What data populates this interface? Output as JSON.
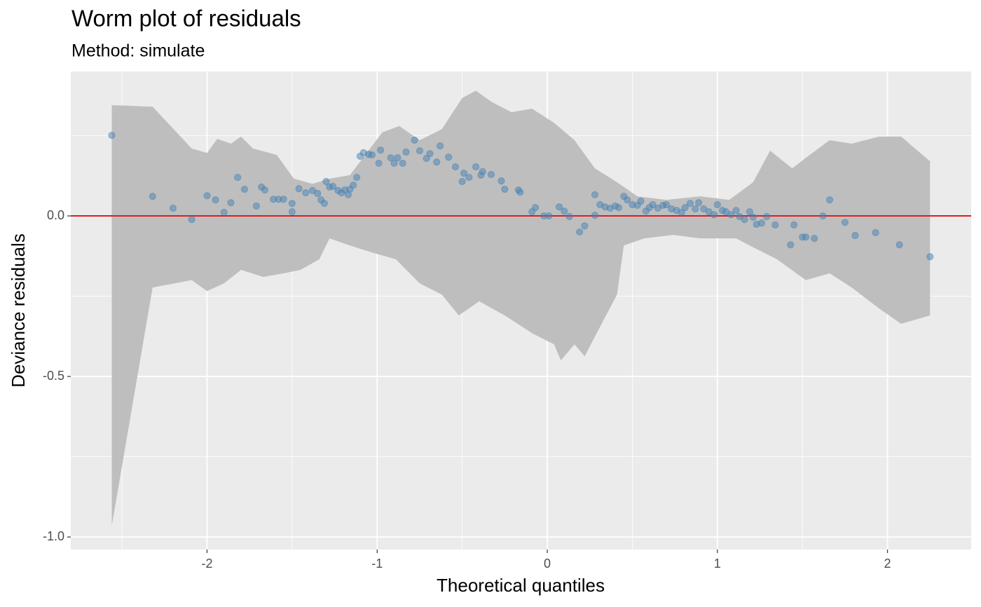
{
  "chart_data": {
    "type": "scatter",
    "title": "Worm plot of residuals",
    "subtitle": "Method: simulate",
    "x_label": "Theoretical quantiles",
    "y_label": "Deviance residuals",
    "xlim": [
      -2.801,
      2.492
    ],
    "ylim": [
      -1.039,
      0.4498
    ],
    "xticks": [
      -2,
      -1,
      0,
      1,
      2
    ],
    "yticks": [
      {
        "value": 0,
        "label": "0.0"
      },
      {
        "value": -0.5,
        "label": "-0.5"
      },
      {
        "value": -1,
        "label": "-1.0"
      }
    ],
    "grid": true,
    "points": {
      "color": "#4682b4",
      "x": [
        -2.56,
        -2.32,
        -2.2,
        -2.09,
        -2.0,
        -1.95,
        -1.9,
        -1.86,
        -1.82,
        -1.78,
        -1.71,
        -1.68,
        -1.66,
        -1.61,
        -1.58,
        -1.55,
        -1.5,
        -1.5,
        -1.46,
        -1.42,
        -1.38,
        -1.35,
        -1.33,
        -1.31,
        -1.3,
        -1.28,
        -1.26,
        -1.23,
        -1.21,
        -1.19,
        -1.17,
        -1.16,
        -1.14,
        -1.12,
        -1.1,
        -1.08,
        -1.05,
        -1.03,
        -0.99,
        -0.98,
        -0.92,
        -0.9,
        -0.88,
        -0.85,
        -0.83,
        -0.78,
        -0.75,
        -0.71,
        -0.69,
        -0.65,
        -0.63,
        -0.58,
        -0.54,
        -0.5,
        -0.49,
        -0.46,
        -0.42,
        -0.39,
        -0.38,
        -0.33,
        -0.27,
        -0.25,
        -0.17,
        -0.16,
        -0.09,
        -0.07,
        -0.02,
        0.01,
        0.07,
        0.1,
        0.13,
        0.19,
        0.22,
        0.28,
        0.28,
        0.31,
        0.34,
        0.37,
        0.4,
        0.42,
        0.45,
        0.47,
        0.5,
        0.53,
        0.55,
        0.58,
        0.6,
        0.62,
        0.65,
        0.68,
        0.7,
        0.73,
        0.76,
        0.79,
        0.81,
        0.84,
        0.87,
        0.89,
        0.92,
        0.95,
        0.98,
        1.0,
        1.03,
        1.05,
        1.08,
        1.11,
        1.13,
        1.16,
        1.19,
        1.21,
        1.23,
        1.26,
        1.29,
        1.34,
        1.43,
        1.45,
        1.5,
        1.52,
        1.57,
        1.62,
        1.66,
        1.75,
        1.81,
        1.93,
        2.07,
        2.25
      ],
      "y": [
        0.251,
        0.061,
        0.024,
        -0.011,
        0.063,
        0.05,
        0.011,
        0.041,
        0.12,
        0.083,
        0.031,
        0.09,
        0.081,
        0.052,
        0.052,
        0.052,
        0.039,
        0.013,
        0.085,
        0.072,
        0.079,
        0.07,
        0.05,
        0.039,
        0.107,
        0.09,
        0.092,
        0.079,
        0.072,
        0.081,
        0.066,
        0.083,
        0.096,
        0.12,
        0.186,
        0.197,
        0.192,
        0.19,
        0.164,
        0.205,
        0.181,
        0.164,
        0.181,
        0.164,
        0.199,
        0.236,
        0.203,
        0.179,
        0.194,
        0.168,
        0.218,
        0.183,
        0.153,
        0.107,
        0.133,
        0.12,
        0.153,
        0.127,
        0.138,
        0.129,
        0.109,
        0.083,
        0.081,
        0.074,
        0.013,
        0.026,
        0.0,
        0.0,
        0.028,
        0.015,
        -0.002,
        -0.05,
        -0.031,
        0.066,
        0.002,
        0.035,
        0.028,
        0.024,
        0.031,
        0.026,
        0.061,
        0.05,
        0.035,
        0.033,
        0.046,
        0.015,
        0.026,
        0.035,
        0.024,
        0.033,
        0.035,
        0.022,
        0.017,
        0.011,
        0.026,
        0.039,
        0.022,
        0.041,
        0.022,
        0.013,
        0.004,
        0.035,
        0.017,
        0.013,
        0.004,
        0.017,
        -0.002,
        -0.011,
        0.013,
        -0.004,
        -0.026,
        -0.022,
        -0.002,
        -0.028,
        -0.09,
        -0.028,
        -0.066,
        -0.066,
        -0.07,
        0.0,
        0.05,
        -0.02,
        -0.061,
        -0.052,
        -0.09,
        -0.127
      ]
    },
    "band": {
      "color": "#bebebe",
      "upper": {
        "x": [
          -2.56,
          -2.32,
          -2.09,
          -2.0,
          -1.94,
          -1.86,
          -1.8,
          -1.73,
          -1.59,
          -1.49,
          -1.38,
          -1.28,
          -1.16,
          -1.07,
          -0.97,
          -0.87,
          -0.75,
          -0.62,
          -0.5,
          -0.42,
          -0.33,
          -0.21,
          -0.09,
          0.04,
          0.16,
          0.28,
          0.41,
          0.53,
          0.7,
          0.9,
          1.07,
          1.21,
          1.31,
          1.44,
          1.52,
          1.66,
          1.79,
          1.95,
          2.08,
          2.25
        ],
        "y": [
          0.345,
          0.34,
          0.21,
          0.196,
          0.24,
          0.225,
          0.247,
          0.21,
          0.19,
          0.116,
          0.1,
          0.116,
          0.127,
          0.19,
          0.26,
          0.28,
          0.236,
          0.27,
          0.367,
          0.39,
          0.356,
          0.323,
          0.334,
          0.29,
          0.236,
          0.148,
          0.105,
          0.061,
          0.05,
          0.061,
          0.05,
          0.105,
          0.203,
          0.148,
          0.181,
          0.236,
          0.225,
          0.247,
          0.247,
          0.17
        ]
      },
      "lower": {
        "x": [
          -2.56,
          -2.32,
          -2.09,
          -2.0,
          -1.9,
          -1.8,
          -1.67,
          -1.55,
          -1.45,
          -1.34,
          -1.28,
          -1.16,
          -1.03,
          -0.89,
          -0.75,
          -0.62,
          -0.52,
          -0.4,
          -0.25,
          -0.09,
          0.04,
          0.08,
          0.16,
          0.22,
          0.28,
          0.41,
          0.45,
          0.57,
          0.74,
          0.9,
          1.11,
          1.23,
          1.35,
          1.52,
          1.66,
          1.79,
          1.95,
          2.08,
          2.25
        ],
        "y": [
          -0.965,
          -0.223,
          -0.2,
          -0.234,
          -0.21,
          -0.168,
          -0.19,
          -0.179,
          -0.168,
          -0.135,
          -0.07,
          -0.092,
          -0.114,
          -0.135,
          -0.21,
          -0.245,
          -0.31,
          -0.266,
          -0.31,
          -0.365,
          -0.4,
          -0.45,
          -0.4,
          -0.437,
          -0.376,
          -0.245,
          -0.092,
          -0.07,
          -0.059,
          -0.07,
          -0.07,
          -0.103,
          -0.135,
          -0.2,
          -0.179,
          -0.223,
          -0.288,
          -0.336,
          -0.31
        ]
      }
    },
    "reference_line": {
      "value": 0,
      "color": "#e41a1c"
    }
  }
}
